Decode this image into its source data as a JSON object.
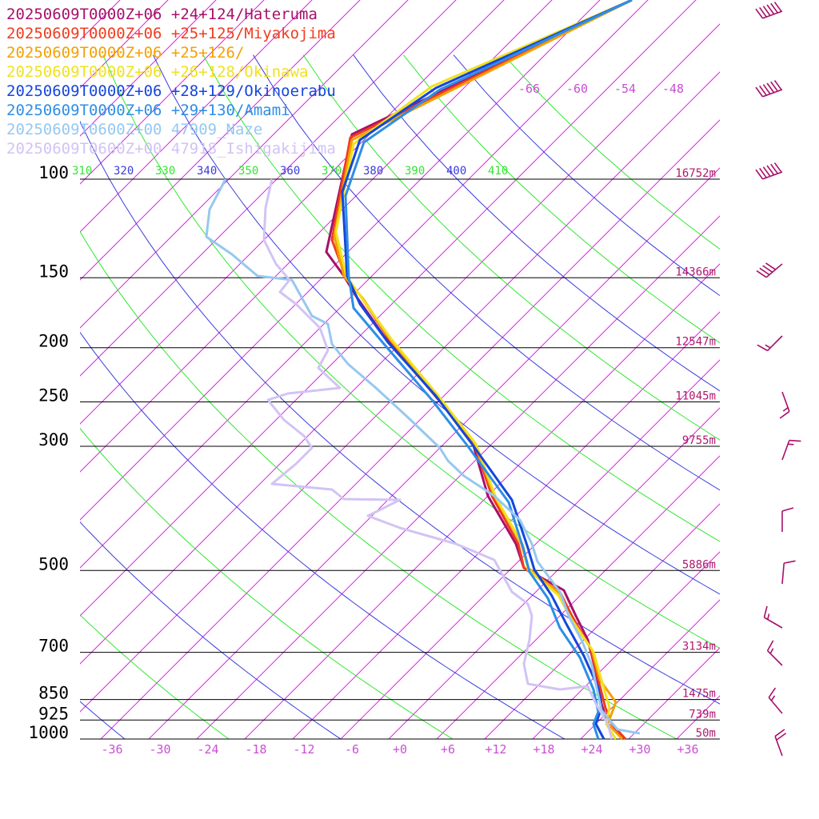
{
  "chart_data": {
    "type": "line",
    "legend": [
      {
        "label": "20250609T0000Z+06 +24+124/Hateruma",
        "color": "#a8106a"
      },
      {
        "label": "20250609T0000Z+06 +25+125/Miyakojima",
        "color": "#f03c1e"
      },
      {
        "label": "20250609T0000Z+06 +25+126/",
        "color": "#f5a000"
      },
      {
        "label": "20250609T0000Z+06 +26+128/Okinawa",
        "color": "#f0e21e"
      },
      {
        "label": "20250609T0000Z+06 +28+129/Okinoerabu",
        "color": "#1446dc"
      },
      {
        "label": "20250609T0000Z+06 +29+130/Amami",
        "color": "#2d8ee6"
      },
      {
        "label": "20250609T0600Z+00 47909_Naze",
        "color": "#96c8f0"
      },
      {
        "label": "20250609T0600Z+00 47918_Ishigakijima",
        "color": "#d2c3f5"
      }
    ],
    "pressure_levels": [
      {
        "p": 100,
        "label": "100",
        "height": "16752m"
      },
      {
        "p": 150,
        "label": "150",
        "height": "14366m"
      },
      {
        "p": 200,
        "label": "200",
        "height": "12547m"
      },
      {
        "p": 250,
        "label": "250",
        "height": "11045m"
      },
      {
        "p": 300,
        "label": "300",
        "height": "9755m"
      },
      {
        "p": 500,
        "label": "500",
        "height": "5886m"
      },
      {
        "p": 700,
        "label": "700",
        "height": "3134m"
      },
      {
        "p": 850,
        "label": "850",
        "height": "1475m"
      },
      {
        "p": 925,
        "label": "925",
        "height": "739m"
      },
      {
        "p": 1000,
        "label": "1000",
        "height": "50m"
      }
    ],
    "x_ticks": [
      "-36",
      "-30",
      "-24",
      "-18",
      "-12",
      "-6",
      "+0",
      "+6",
      "+12",
      "+18",
      "+24",
      "+30",
      "+36"
    ],
    "x_tick_values": [
      -36,
      -30,
      -24,
      -18,
      -12,
      -6,
      0,
      6,
      12,
      18,
      24,
      30,
      36
    ],
    "theta_labels": [
      {
        "text": "310",
        "value": 310,
        "color": "#32e632"
      },
      {
        "text": "320",
        "value": 320,
        "color": "#3c3cdc"
      },
      {
        "text": "330",
        "value": 330,
        "color": "#32e632"
      },
      {
        "text": "340",
        "value": 340,
        "color": "#3c3cdc"
      },
      {
        "text": "350",
        "value": 350,
        "color": "#32e632"
      },
      {
        "text": "360",
        "value": 360,
        "color": "#3c3cdc"
      },
      {
        "text": "370",
        "value": 370,
        "color": "#32e632"
      },
      {
        "text": "380",
        "value": 380,
        "color": "#3c3cdc"
      },
      {
        "text": "390",
        "value": 390,
        "color": "#32e632"
      },
      {
        "text": "400",
        "value": 400,
        "color": "#3c3cdc"
      },
      {
        "text": "410",
        "value": 410,
        "color": "#32e632"
      }
    ],
    "isotherm_labels": [
      "-66",
      "-60",
      "-54",
      "-48"
    ],
    "colors": {
      "isotherm": "#dc28dc",
      "dry_adiabat_a": "#32e632",
      "dry_adiabat_b": "#3c3cdc",
      "isobar": "#000000",
      "wind_barb": "#a8106a",
      "height_label": "#b0186e"
    },
    "series": [
      {
        "name": "20250609T0000Z+06 +24+124/Hateruma",
        "color": "#a8106a",
        "points": [
          [
            790,
            0
          ],
          [
            440,
            168
          ],
          [
            408,
            315
          ],
          [
            430,
            345
          ],
          [
            445,
            370
          ],
          [
            480,
            420
          ],
          [
            540,
            490
          ],
          [
            590,
            550
          ],
          [
            610,
            620
          ],
          [
            645,
            680
          ],
          [
            655,
            710
          ],
          [
            705,
            738
          ],
          [
            720,
            770
          ],
          [
            735,
            800
          ],
          [
            745,
            840
          ],
          [
            752,
            880
          ],
          [
            760,
            905
          ],
          [
            780,
            924
          ]
        ]
      },
      {
        "name": "20250609T0000Z+06 +25+125/Miyakojima",
        "color": "#f03c1e",
        "points": [
          [
            790,
            0
          ],
          [
            438,
            172
          ],
          [
            415,
            300
          ],
          [
            432,
            345
          ],
          [
            452,
            372
          ],
          [
            484,
            420
          ],
          [
            542,
            490
          ],
          [
            592,
            552
          ],
          [
            615,
            620
          ],
          [
            648,
            680
          ],
          [
            655,
            710
          ],
          [
            700,
            740
          ],
          [
            715,
            770
          ],
          [
            738,
            810
          ],
          [
            748,
            850
          ],
          [
            757,
            885
          ],
          [
            765,
            905
          ],
          [
            782,
            924
          ]
        ]
      },
      {
        "name": "20250609T0000Z+06 +25+126/",
        "color": "#f5a000",
        "points": [
          [
            790,
            0
          ],
          [
            440,
            175
          ],
          [
            418,
            295
          ],
          [
            430,
            345
          ],
          [
            455,
            375
          ],
          [
            488,
            425
          ],
          [
            545,
            492
          ],
          [
            592,
            552
          ],
          [
            618,
            620
          ],
          [
            652,
            680
          ],
          [
            660,
            710
          ],
          [
            700,
            742
          ],
          [
            712,
            772
          ],
          [
            740,
            812
          ],
          [
            750,
            850
          ],
          [
            770,
            878
          ],
          [
            760,
            905
          ],
          [
            778,
            924
          ]
        ]
      },
      {
        "name": "20250609T0000Z+06 +26+128/Okinawa",
        "color": "#f0e21e",
        "points": [
          [
            790,
            0
          ],
          [
            540,
            108
          ],
          [
            442,
            180
          ],
          [
            420,
            290
          ],
          [
            433,
            345
          ],
          [
            456,
            378
          ],
          [
            490,
            425
          ],
          [
            548,
            495
          ],
          [
            595,
            555
          ],
          [
            620,
            622
          ],
          [
            654,
            682
          ],
          [
            660,
            712
          ],
          [
            698,
            744
          ],
          [
            715,
            775
          ],
          [
            742,
            815
          ],
          [
            752,
            850
          ],
          [
            762,
            885
          ],
          [
            758,
            905
          ],
          [
            770,
            924
          ]
        ]
      },
      {
        "name": "20250609T0000Z+06 +28+129/Okinoerabu",
        "color": "#1446dc",
        "points": [
          [
            790,
            0
          ],
          [
            545,
            110
          ],
          [
            450,
            175
          ],
          [
            428,
            240
          ],
          [
            434,
            345
          ],
          [
            450,
            380
          ],
          [
            485,
            428
          ],
          [
            545,
            495
          ],
          [
            590,
            555
          ],
          [
            640,
            625
          ],
          [
            660,
            685
          ],
          [
            668,
            712
          ],
          [
            690,
            745
          ],
          [
            708,
            780
          ],
          [
            730,
            820
          ],
          [
            748,
            860
          ],
          [
            752,
            885
          ],
          [
            745,
            905
          ],
          [
            755,
            924
          ]
        ]
      },
      {
        "name": "20250609T0000Z+06 +29+130/Amami",
        "color": "#2d8ee6",
        "points": [
          [
            790,
            0
          ],
          [
            550,
            112
          ],
          [
            455,
            178
          ],
          [
            432,
            245
          ],
          [
            436,
            345
          ],
          [
            442,
            385
          ],
          [
            480,
            430
          ],
          [
            540,
            500
          ],
          [
            585,
            558
          ],
          [
            636,
            628
          ],
          [
            655,
            688
          ],
          [
            662,
            715
          ],
          [
            685,
            748
          ],
          [
            700,
            785
          ],
          [
            725,
            822
          ],
          [
            742,
            862
          ],
          [
            748,
            890
          ],
          [
            742,
            905
          ],
          [
            748,
            924
          ]
        ]
      },
      {
        "name": "20250609T0600Z+00 47909_Naze",
        "color": "#96c8f0",
        "points": [
          [
            282,
            224
          ],
          [
            262,
            262
          ],
          [
            258,
            296
          ],
          [
            290,
            318
          ],
          [
            322,
            345
          ],
          [
            365,
            350
          ],
          [
            390,
            395
          ],
          [
            410,
            405
          ],
          [
            415,
            430
          ],
          [
            435,
            455
          ],
          [
            470,
            485
          ],
          [
            508,
            520
          ],
          [
            550,
            560
          ],
          [
            560,
            576
          ],
          [
            580,
            595
          ],
          [
            618,
            620
          ],
          [
            650,
            650
          ],
          [
            665,
            680
          ],
          [
            672,
            702
          ],
          [
            700,
            740
          ],
          [
            712,
            772
          ],
          [
            728,
            802
          ],
          [
            740,
            832
          ],
          [
            746,
            860
          ],
          [
            752,
            888
          ],
          [
            772,
            912
          ],
          [
            800,
            917
          ]
        ]
      },
      {
        "name": "20250609T0600Z+00 47918_Ishigakijima",
        "color": "#d2c3f5",
        "points": [
          [
            340,
            224
          ],
          [
            332,
            260
          ],
          [
            330,
            300
          ],
          [
            345,
            330
          ],
          [
            362,
            350
          ],
          [
            350,
            365
          ],
          [
            370,
            380
          ],
          [
            385,
            395
          ],
          [
            400,
            410
          ],
          [
            410,
            438
          ],
          [
            398,
            460
          ],
          [
            425,
            485
          ],
          [
            360,
            492
          ],
          [
            335,
            500
          ],
          [
            355,
            525
          ],
          [
            380,
            545
          ],
          [
            390,
            560
          ],
          [
            370,
            580
          ],
          [
            340,
            605
          ],
          [
            415,
            612
          ],
          [
            430,
            624
          ],
          [
            500,
            625
          ],
          [
            460,
            645
          ],
          [
            500,
            660
          ],
          [
            570,
            680
          ],
          [
            618,
            700
          ],
          [
            640,
            740
          ],
          [
            660,
            755
          ],
          [
            665,
            770
          ],
          [
            662,
            800
          ],
          [
            655,
            830
          ],
          [
            660,
            855
          ],
          [
            700,
            862
          ],
          [
            735,
            858
          ],
          [
            745,
            880
          ],
          [
            760,
            905
          ],
          [
            765,
            924
          ]
        ]
      }
    ],
    "wind_barbs": [
      {
        "x": 978,
        "y": 14,
        "dir": 250,
        "speed": 60
      },
      {
        "x": 978,
        "y": 112,
        "dir": 250,
        "speed": 60
      },
      {
        "x": 978,
        "y": 215,
        "dir": 250,
        "speed": 60
      },
      {
        "x": 978,
        "y": 330,
        "dir": 230,
        "speed": 40
      },
      {
        "x": 978,
        "y": 420,
        "dir": 225,
        "speed": 15
      },
      {
        "x": 978,
        "y": 490,
        "dir": 160,
        "speed": 15
      },
      {
        "x": 978,
        "y": 575,
        "dir": 20,
        "speed": 15
      },
      {
        "x": 978,
        "y": 665,
        "dir": 0,
        "speed": 10
      },
      {
        "x": 978,
        "y": 730,
        "dir": 5,
        "speed": 10
      },
      {
        "x": 978,
        "y": 785,
        "dir": 300,
        "speed": 15
      },
      {
        "x": 978,
        "y": 832,
        "dir": 315,
        "speed": 15
      },
      {
        "x": 978,
        "y": 892,
        "dir": 320,
        "speed": 15
      },
      {
        "x": 978,
        "y": 945,
        "dir": 340,
        "speed": 20
      }
    ]
  }
}
